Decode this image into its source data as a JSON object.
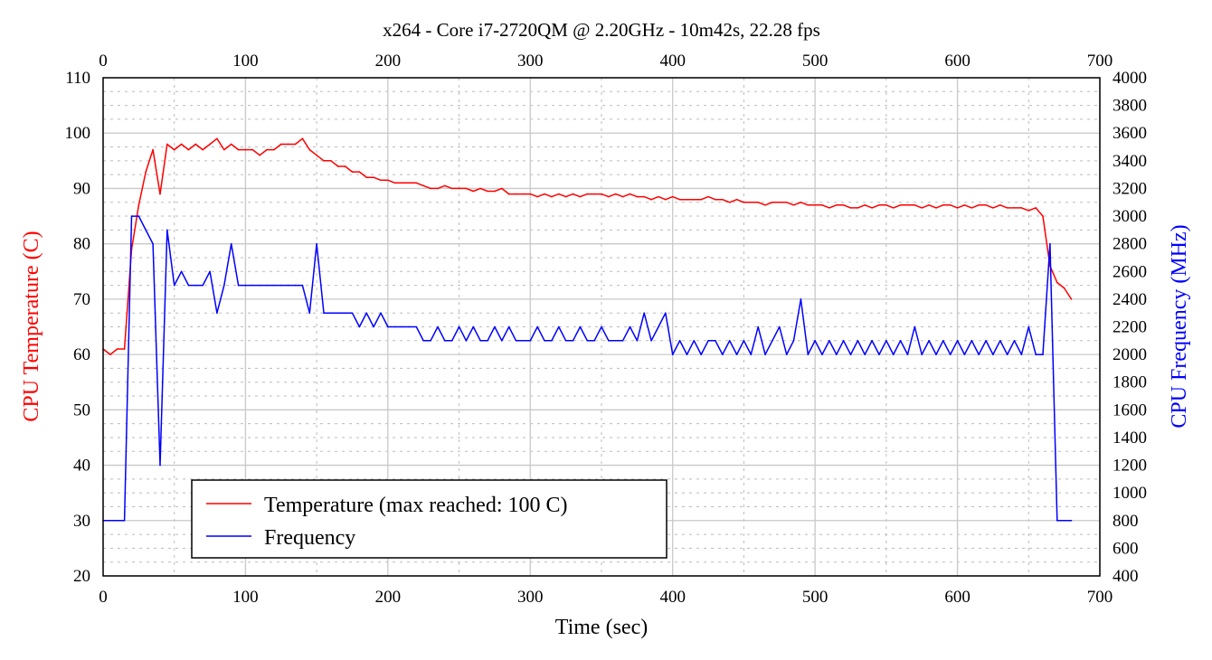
{
  "chart_data": {
    "type": "line",
    "title": "x264 - Core i7-2720QM @ 2.20GHz - 10m42s, 22.28 fps",
    "xlabel": "Time (sec)",
    "ylabel": "CPU Temperature (C)",
    "y2label": "CPU Frequency (MHz)",
    "xlim": [
      0,
      700
    ],
    "ylim": [
      20,
      110
    ],
    "y2lim": [
      400,
      4000
    ],
    "x_ticks": [
      "0",
      "100",
      "200",
      "300",
      "400",
      "500",
      "600",
      "700"
    ],
    "y_ticks": [
      "20",
      "30",
      "40",
      "50",
      "60",
      "70",
      "80",
      "90",
      "100",
      "110"
    ],
    "y2_ticks": [
      "400",
      "600",
      "800",
      "1000",
      "1200",
      "1400",
      "1600",
      "1800",
      "2000",
      "2200",
      "2400",
      "2600",
      "2800",
      "3000",
      "3200",
      "3400",
      "3600",
      "3800",
      "4000"
    ],
    "grid": true,
    "legend_position": "bottom-left",
    "series": [
      {
        "name": "Temperature (max reached: 100 C)",
        "axis": "left",
        "color": "#ff0000",
        "x_start": 0,
        "x_step": 5,
        "values": [
          61,
          60,
          61,
          61,
          79,
          87,
          93,
          97,
          89,
          98,
          97,
          98,
          97,
          98,
          97,
          98,
          99,
          97,
          98,
          97,
          97,
          97,
          96,
          97,
          97,
          98,
          98,
          98,
          99,
          97,
          96,
          95,
          95,
          94,
          94,
          93,
          93,
          92,
          92,
          91.5,
          91.5,
          91,
          91,
          91,
          91,
          90.5,
          90,
          90,
          90.5,
          90,
          90,
          90,
          89.5,
          90,
          89.5,
          89.5,
          90,
          89,
          89,
          89,
          89,
          88.5,
          89,
          88.5,
          89,
          88.5,
          89,
          88.5,
          89,
          89,
          89,
          88.5,
          89,
          88.5,
          89,
          88.5,
          88.5,
          88,
          88.5,
          88,
          88.5,
          88,
          88,
          88,
          88,
          88.5,
          88,
          88,
          87.5,
          88,
          87.5,
          87.5,
          87.5,
          87,
          87.5,
          87.5,
          87.5,
          87,
          87.5,
          87,
          87,
          87,
          86.5,
          87,
          87,
          86.5,
          86.5,
          87,
          86.5,
          87,
          87,
          86.5,
          87,
          87,
          87,
          86.5,
          87,
          86.5,
          87,
          87,
          86.5,
          87,
          86.5,
          87,
          87,
          86.5,
          87,
          86.5,
          86.5,
          86.5,
          86,
          86.5,
          85,
          76,
          73,
          72,
          70
        ]
      },
      {
        "name": "Frequency",
        "axis": "right",
        "color": "#0000ff",
        "x_start": 0,
        "x_step": 5,
        "values": [
          800,
          800,
          800,
          800,
          3000,
          3000,
          2900,
          2800,
          1200,
          2900,
          2500,
          2600,
          2500,
          2500,
          2500,
          2600,
          2300,
          2500,
          2800,
          2500,
          2500,
          2500,
          2500,
          2500,
          2500,
          2500,
          2500,
          2500,
          2500,
          2300,
          2800,
          2300,
          2300,
          2300,
          2300,
          2300,
          2200,
          2300,
          2200,
          2300,
          2200,
          2200,
          2200,
          2200,
          2200,
          2100,
          2100,
          2200,
          2100,
          2100,
          2200,
          2100,
          2200,
          2100,
          2100,
          2200,
          2100,
          2200,
          2100,
          2100,
          2100,
          2200,
          2100,
          2100,
          2200,
          2100,
          2100,
          2200,
          2100,
          2100,
          2200,
          2100,
          2100,
          2100,
          2200,
          2100,
          2300,
          2100,
          2200,
          2300,
          2000,
          2100,
          2000,
          2100,
          2000,
          2100,
          2100,
          2000,
          2100,
          2000,
          2100,
          2000,
          2200,
          2000,
          2100,
          2200,
          2000,
          2100,
          2400,
          2000,
          2100,
          2000,
          2100,
          2000,
          2100,
          2000,
          2100,
          2000,
          2100,
          2000,
          2100,
          2000,
          2100,
          2000,
          2200,
          2000,
          2100,
          2000,
          2100,
          2000,
          2100,
          2000,
          2100,
          2000,
          2100,
          2000,
          2100,
          2000,
          2100,
          2000,
          2200,
          2000,
          2000,
          2800,
          800,
          800,
          800
        ]
      }
    ]
  }
}
